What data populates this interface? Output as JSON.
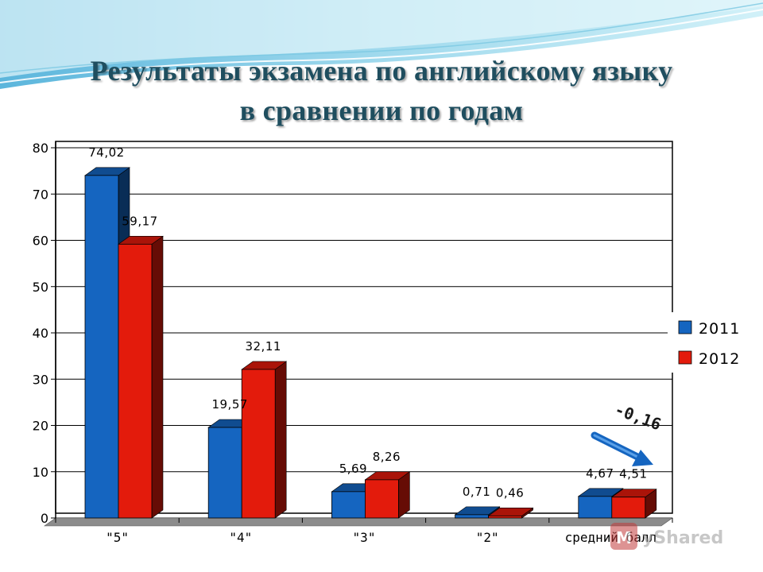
{
  "slide": {
    "title_line1": "Результаты экзамена по английскому языку",
    "title_line2": "в сравнении по годам"
  },
  "colors": {
    "series_2011": "#1565c0",
    "series_2012": "#e31b0c",
    "floor": "#8c8c8c",
    "title": "#1f4e5f"
  },
  "chart_data": {
    "type": "bar",
    "title": "",
    "xlabel": "",
    "ylabel": "",
    "ylim": [
      0,
      80
    ],
    "yticks": [
      0,
      10,
      20,
      30,
      40,
      50,
      60,
      70,
      80
    ],
    "grid": true,
    "legend_position": "right",
    "categories": [
      "\"5\"",
      "\"4\"",
      "\"3\"",
      "\"2\"",
      "средний балл"
    ],
    "series": [
      {
        "name": "2011",
        "values": [
          74.02,
          19.57,
          5.69,
          0.71,
          4.67
        ],
        "labels": [
          "74,02",
          "19,57",
          "5,69",
          "0,71",
          "4,67"
        ]
      },
      {
        "name": "2012",
        "values": [
          59.17,
          32.11,
          8.26,
          0.46,
          4.51
        ],
        "labels": [
          "59,17",
          "32,11",
          "8,26",
          "0,46",
          "4,51"
        ]
      }
    ],
    "annotations": [
      {
        "text": "-0,16",
        "category": "средний балл",
        "arrow": "down-right"
      }
    ]
  }
}
